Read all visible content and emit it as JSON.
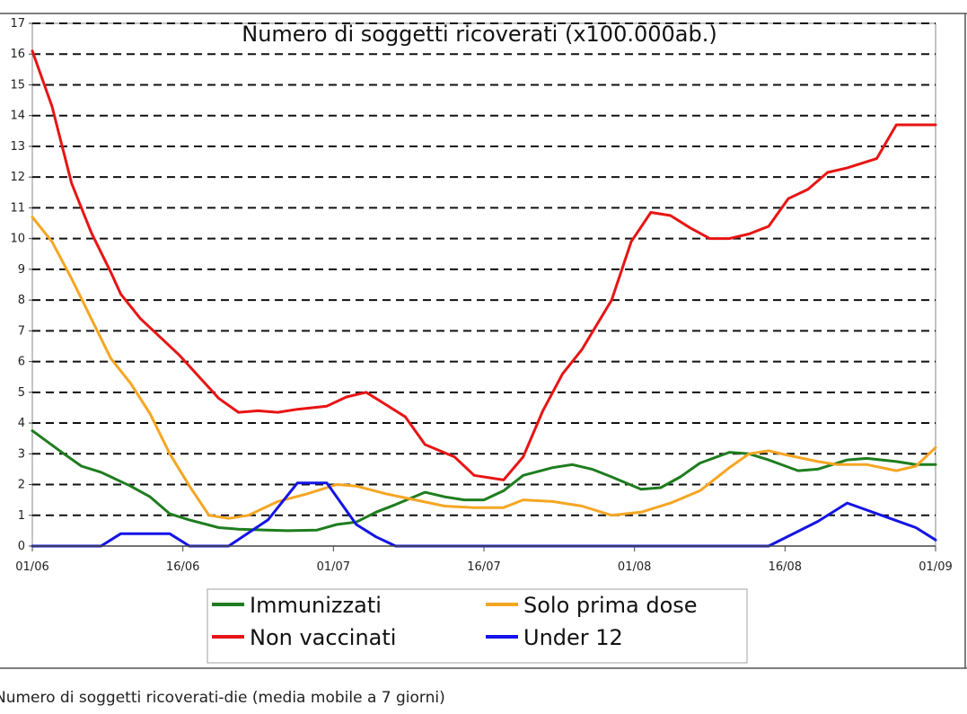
{
  "caption": "Numero di soggetti ricoverati-die (media mobile a 7 giorni)",
  "chart_data": {
    "type": "line",
    "title": "Numero di soggetti ricoverati (x100.000ab.)",
    "xlabel": "",
    "ylabel": "",
    "ylim": [
      0,
      17
    ],
    "xlim": [
      "2021-06-01",
      "2021-09-01"
    ],
    "yticks": [
      0,
      1,
      2,
      3,
      4,
      5,
      6,
      7,
      8,
      9,
      10,
      11,
      12,
      13,
      14,
      15,
      16,
      17
    ],
    "xticks": [
      "01/06",
      "16/06",
      "01/07",
      "16/07",
      "01/08",
      "16/08",
      "01/09"
    ],
    "grid": "horizontal dashed",
    "legend_position": "bottom",
    "series": [
      {
        "name": "Immunizzati",
        "color": "#1e7d1e",
        "x": [
          "2021-06-01",
          "2021-06-04",
          "2021-06-06",
          "2021-06-08",
          "2021-06-11",
          "2021-06-13",
          "2021-06-15",
          "2021-06-17",
          "2021-06-20",
          "2021-06-22",
          "2021-06-25",
          "2021-06-27",
          "2021-06-30",
          "2021-07-02",
          "2021-07-04",
          "2021-07-06",
          "2021-07-08",
          "2021-07-11",
          "2021-07-13",
          "2021-07-15",
          "2021-07-17",
          "2021-07-19",
          "2021-07-21",
          "2021-07-24",
          "2021-07-26",
          "2021-07-28",
          "2021-07-30",
          "2021-08-02",
          "2021-08-04",
          "2021-08-06",
          "2021-08-08",
          "2021-08-11",
          "2021-08-13",
          "2021-08-15",
          "2021-08-18",
          "2021-08-20",
          "2021-08-23",
          "2021-08-25",
          "2021-08-28",
          "2021-08-30",
          "2021-09-01"
        ],
        "y": [
          3.75,
          3.05,
          2.6,
          2.4,
          1.95,
          1.6,
          1.05,
          0.85,
          0.6,
          0.55,
          0.52,
          0.5,
          0.52,
          0.7,
          0.78,
          1.1,
          1.35,
          1.75,
          1.6,
          1.5,
          1.5,
          1.8,
          2.3,
          2.55,
          2.65,
          2.5,
          2.25,
          1.85,
          1.9,
          2.25,
          2.7,
          3.05,
          3.0,
          2.8,
          2.45,
          2.5,
          2.8,
          2.85,
          2.75,
          2.65,
          2.65
        ]
      },
      {
        "name": "Non vaccinati",
        "color": "#e81414",
        "x": [
          "2021-06-01",
          "2021-06-03",
          "2021-06-05",
          "2021-06-07",
          "2021-06-09",
          "2021-06-10",
          "2021-06-12",
          "2021-06-14",
          "2021-06-16",
          "2021-06-18",
          "2021-06-20",
          "2021-06-22",
          "2021-06-24",
          "2021-06-26",
          "2021-06-28",
          "2021-07-01",
          "2021-07-03",
          "2021-07-05",
          "2021-07-07",
          "2021-07-09",
          "2021-07-11",
          "2021-07-14",
          "2021-07-16",
          "2021-07-19",
          "2021-07-21",
          "2021-07-23",
          "2021-07-25",
          "2021-07-27",
          "2021-07-30",
          "2021-08-01",
          "2021-08-03",
          "2021-08-05",
          "2021-08-07",
          "2021-08-09",
          "2021-08-11",
          "2021-08-13",
          "2021-08-15",
          "2021-08-17",
          "2021-08-19",
          "2021-08-21",
          "2021-08-23",
          "2021-08-26",
          "2021-08-28",
          "2021-08-30",
          "2021-09-01"
        ],
        "y": [
          16.1,
          14.3,
          11.8,
          10.2,
          8.9,
          8.2,
          7.4,
          6.8,
          6.2,
          5.5,
          4.8,
          4.35,
          4.4,
          4.35,
          4.45,
          4.55,
          4.85,
          5.0,
          4.6,
          4.2,
          3.3,
          2.9,
          2.3,
          2.15,
          2.9,
          4.4,
          5.6,
          6.4,
          8.0,
          9.9,
          10.85,
          10.75,
          10.35,
          10.0,
          10.0,
          10.15,
          10.4,
          11.3,
          11.6,
          12.15,
          12.3,
          12.6,
          13.7,
          13.7,
          13.7
        ]
      },
      {
        "name": "Solo prima dose",
        "color": "#f5a623",
        "x": [
          "2021-06-01",
          "2021-06-03",
          "2021-06-05",
          "2021-06-07",
          "2021-06-09",
          "2021-06-11",
          "2021-06-13",
          "2021-06-15",
          "2021-06-17",
          "2021-06-19",
          "2021-06-21",
          "2021-06-23",
          "2021-06-26",
          "2021-06-29",
          "2021-07-02",
          "2021-07-04",
          "2021-07-07",
          "2021-07-10",
          "2021-07-13",
          "2021-07-16",
          "2021-07-19",
          "2021-07-21",
          "2021-07-24",
          "2021-07-27",
          "2021-07-30",
          "2021-08-02",
          "2021-08-05",
          "2021-08-08",
          "2021-08-11",
          "2021-08-13",
          "2021-08-15",
          "2021-08-17",
          "2021-08-20",
          "2021-08-22",
          "2021-08-25",
          "2021-08-28",
          "2021-08-30",
          "2021-09-01"
        ],
        "y": [
          10.7,
          9.9,
          8.7,
          7.4,
          6.1,
          5.3,
          4.3,
          3.0,
          1.95,
          1.0,
          0.9,
          1.0,
          1.45,
          1.7,
          2.0,
          1.95,
          1.7,
          1.5,
          1.3,
          1.25,
          1.25,
          1.5,
          1.45,
          1.3,
          1.0,
          1.1,
          1.4,
          1.8,
          2.55,
          3.0,
          3.1,
          2.95,
          2.75,
          2.65,
          2.65,
          2.45,
          2.6,
          3.2
        ]
      },
      {
        "name": "Under 12",
        "color": "#1414e6",
        "x": [
          "2021-06-01",
          "2021-06-08",
          "2021-06-10",
          "2021-06-15",
          "2021-06-17",
          "2021-06-21",
          "2021-06-25",
          "2021-06-28",
          "2021-07-01",
          "2021-07-04",
          "2021-07-06",
          "2021-07-08",
          "2021-08-15",
          "2021-08-20",
          "2021-08-23",
          "2021-08-30",
          "2021-09-01"
        ],
        "y": [
          0,
          0,
          0.4,
          0.4,
          0,
          0,
          0.85,
          2.05,
          2.05,
          0.7,
          0.3,
          0,
          0,
          0.8,
          1.4,
          0.6,
          0.2
        ]
      }
    ]
  }
}
